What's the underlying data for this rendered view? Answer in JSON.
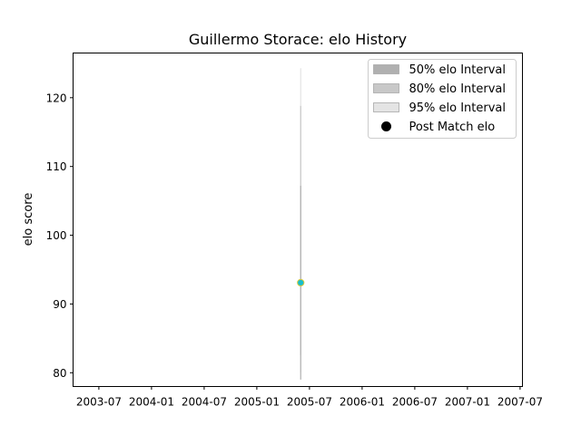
{
  "chart_data": {
    "type": "line",
    "title": "Guillermo Storace: elo History",
    "xlabel": "",
    "ylabel": "elo score",
    "x_ticks": [
      "2003-07",
      "2004-01",
      "2004-07",
      "2005-01",
      "2005-07",
      "2006-01",
      "2006-07",
      "2007-01",
      "2007-07"
    ],
    "y_ticks": [
      80,
      90,
      100,
      110,
      120
    ],
    "ylim": [
      78,
      126.5
    ],
    "grid": false,
    "legend_position": "top-right",
    "legend": [
      {
        "label": "50% elo Interval",
        "color": "#b0b0b0"
      },
      {
        "label": "80% elo Interval",
        "color": "#c8c8c8"
      },
      {
        "label": "95% elo Interval",
        "color": "#e4e4e4"
      },
      {
        "label": "Post Match elo",
        "color": "#000000"
      }
    ],
    "points": [
      {
        "date": "2005-06",
        "elo": 93.1,
        "interval_50": [
          79.0,
          107.2
        ],
        "interval_80": [
          82.6,
          118.8
        ],
        "interval_95": [
          80.1,
          124.3
        ],
        "point_color": "#17becf",
        "point_edge_color": "#d6c93a"
      }
    ]
  }
}
